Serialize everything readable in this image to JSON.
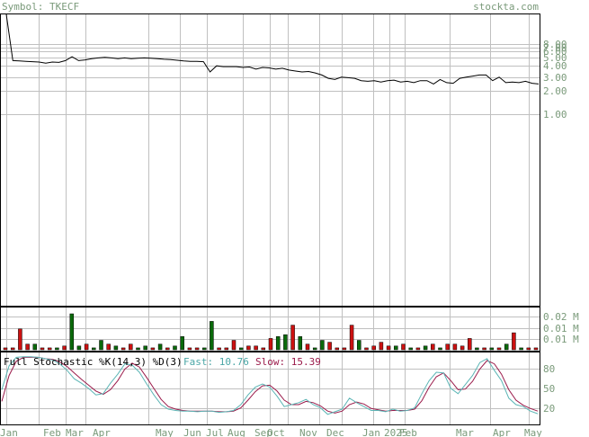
{
  "header": {
    "symbol_label": "Symbol: TKECF",
    "site": "stockta.com"
  },
  "colors": {
    "grid": "#c0c0c0",
    "frame": "#000000",
    "price_line": "#000000",
    "axis_text": "#7a9a7a",
    "header_text": "#7a9a7a",
    "vol_up": "#0a6a0a",
    "vol_down": "#cc1111",
    "fast_line": "#5bb5b5",
    "slow_line": "#9a1a4a",
    "fast_text": "#4aa6a6",
    "slow_text": "#9a1a4a"
  },
  "chart_data": [
    {
      "type": "line",
      "scale": "log",
      "y_ticks": [
        "8.00",
        "7.00",
        "6.00",
        "5.00",
        "4.00",
        "3.00",
        "2.00",
        "1.00"
      ],
      "x_labels": [
        "Jan",
        "Feb",
        "Mar",
        "Apr",
        "May",
        "Jun",
        "Jul",
        "Aug",
        "Sep",
        "Oct",
        "Nov",
        "Dec",
        "Jan",
        "2025",
        "Feb",
        "Mar",
        "Apr",
        "May"
      ],
      "values": [
        20.0,
        4.9,
        4.85,
        4.8,
        4.75,
        4.7,
        4.55,
        4.7,
        4.65,
        4.9,
        5.5,
        4.9,
        5.0,
        5.2,
        5.3,
        5.4,
        5.3,
        5.2,
        5.3,
        5.2,
        5.25,
        5.3,
        5.25,
        5.2,
        5.1,
        5.05,
        4.95,
        4.85,
        4.8,
        4.8,
        4.75,
        3.5,
        4.2,
        4.1,
        4.1,
        4.1,
        4.0,
        4.05,
        3.8,
        4.0,
        3.95,
        3.8,
        3.9,
        3.7,
        3.6,
        3.5,
        3.55,
        3.4,
        3.2,
        2.9,
        2.8,
        3.0,
        2.95,
        2.9,
        2.7,
        2.65,
        2.7,
        2.6,
        2.7,
        2.75,
        2.6,
        2.65,
        2.55,
        2.7,
        2.7,
        2.45,
        2.8,
        2.55,
        2.5,
        2.9,
        3.0,
        3.1,
        3.2,
        3.2,
        2.7,
        3.0,
        2.55,
        2.6,
        2.55,
        2.65,
        2.5,
        2.45
      ]
    },
    {
      "type": "bar",
      "y_ticks": [
        "0.02 M",
        "0.01 M",
        "0.01 M"
      ],
      "values": [
        1,
        1,
        11,
        3,
        3,
        1,
        1,
        1,
        2,
        19,
        2,
        3,
        1,
        5,
        3,
        2,
        1,
        3,
        1,
        2,
        1,
        3,
        1,
        2,
        7,
        1,
        1,
        1,
        15,
        1,
        1,
        5,
        1,
        2,
        2,
        1,
        6,
        7,
        8,
        13,
        7,
        3,
        1,
        5,
        4,
        1,
        1,
        13,
        5,
        1,
        2,
        4,
        2,
        2,
        3,
        1,
        1,
        2,
        3,
        1,
        3,
        3,
        2,
        6,
        1,
        1,
        1,
        1,
        3,
        9,
        1,
        1,
        1
      ],
      "up": [
        false,
        false,
        false,
        false,
        true,
        false,
        false,
        true,
        false,
        true,
        true,
        false,
        true,
        true,
        false,
        true,
        false,
        false,
        true,
        true,
        false,
        true,
        false,
        true,
        true,
        false,
        false,
        true,
        true,
        false,
        false,
        false,
        true,
        false,
        false,
        false,
        false,
        true,
        true,
        false,
        true,
        false,
        true,
        true,
        false,
        false,
        false,
        false,
        true,
        false,
        false,
        false,
        false,
        true,
        false,
        true,
        false,
        true,
        false,
        true,
        false,
        false,
        false,
        false,
        true,
        false,
        true,
        false,
        true,
        false,
        true,
        false,
        false
      ]
    },
    {
      "type": "line",
      "title": "Full Stochastic %K(14,3) %D(3)",
      "fast_label": "Fast: 10.76",
      "slow_label": "Slow: 15.39",
      "y_ticks": [
        "80",
        "50",
        "20"
      ],
      "ylim": [
        0,
        100
      ],
      "series": [
        {
          "name": "Fast",
          "values": [
            48,
            85,
            98,
            99,
            99,
            98,
            96,
            94,
            88,
            78,
            65,
            58,
            50,
            40,
            42,
            58,
            72,
            88,
            86,
            75,
            57,
            40,
            25,
            18,
            16,
            15,
            15,
            14,
            15,
            15,
            13,
            14,
            16,
            25,
            40,
            52,
            57,
            52,
            38,
            22,
            25,
            28,
            33,
            25,
            20,
            10,
            14,
            18,
            35,
            28,
            22,
            16,
            16,
            14,
            18,
            15,
            16,
            20,
            42,
            62,
            75,
            74,
            50,
            42,
            56,
            70,
            90,
            96,
            78,
            62,
            35,
            25,
            22,
            15,
            11
          ]
        },
        {
          "name": "Slow",
          "values": [
            30,
            70,
            92,
            98,
            98,
            98,
            96,
            95,
            91,
            84,
            74,
            64,
            55,
            46,
            41,
            48,
            62,
            80,
            89,
            83,
            67,
            50,
            33,
            22,
            18,
            16,
            15,
            15,
            15,
            15,
            14,
            14,
            15,
            20,
            32,
            45,
            54,
            55,
            46,
            32,
            25,
            25,
            30,
            28,
            23,
            15,
            12,
            15,
            25,
            29,
            26,
            19,
            17,
            15,
            16,
            16,
            16,
            18,
            31,
            52,
            68,
            74,
            62,
            48,
            49,
            61,
            80,
            93,
            88,
            72,
            48,
            32,
            24,
            19,
            15
          ]
        }
      ]
    }
  ]
}
